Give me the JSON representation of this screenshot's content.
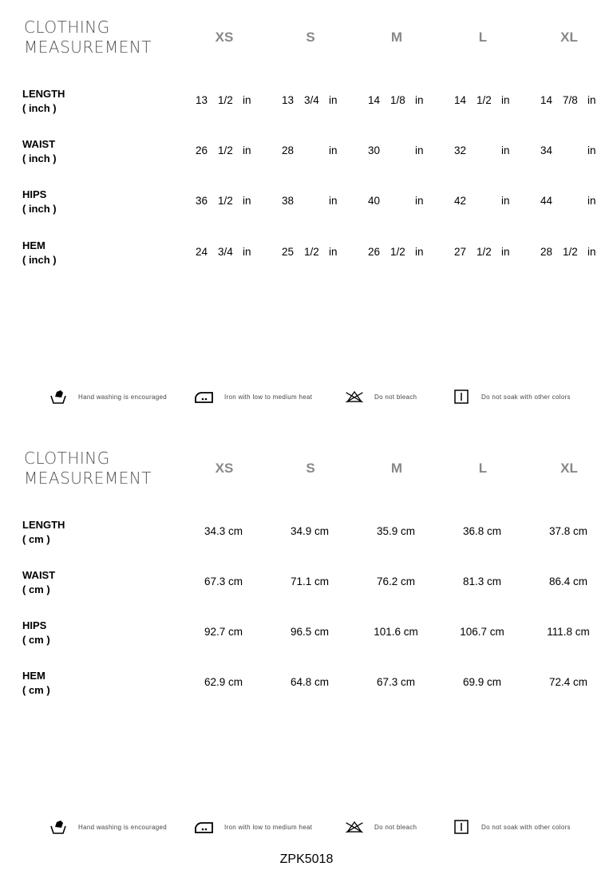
{
  "sizes": [
    "XS",
    "S",
    "M",
    "L",
    "XL"
  ],
  "inch_section": {
    "title_line1": "CLOTHING",
    "title_line2": "MEASUREMENT",
    "rows": [
      {
        "label": "LENGTH",
        "unit": "( inch )",
        "values": [
          [
            "13",
            "1/2",
            "in"
          ],
          [
            "13",
            "3/4",
            "in"
          ],
          [
            "14",
            "1/8",
            "in"
          ],
          [
            "14",
            "1/2",
            "in"
          ],
          [
            "14",
            "7/8",
            "in"
          ]
        ]
      },
      {
        "label": "WAIST",
        "unit": "( inch )",
        "values": [
          [
            "26",
            "1/2",
            "in"
          ],
          [
            "28",
            "",
            "in"
          ],
          [
            "30",
            "",
            "in"
          ],
          [
            "32",
            "",
            "in"
          ],
          [
            "34",
            "",
            "in"
          ]
        ]
      },
      {
        "label": "HIPS",
        "unit": "( inch )",
        "values": [
          [
            "36",
            "1/2",
            "in"
          ],
          [
            "38",
            "",
            "in"
          ],
          [
            "40",
            "",
            "in"
          ],
          [
            "42",
            "",
            "in"
          ],
          [
            "44",
            "",
            "in"
          ]
        ]
      },
      {
        "label": "HEM",
        "unit": "( inch )",
        "values": [
          [
            "24",
            "3/4",
            "in"
          ],
          [
            "25",
            "1/2",
            "in"
          ],
          [
            "26",
            "1/2",
            "in"
          ],
          [
            "27",
            "1/2",
            "in"
          ],
          [
            "28",
            "1/2",
            "in"
          ]
        ]
      }
    ]
  },
  "cm_section": {
    "title_line1": "CLOTHING",
    "title_line2": "MEASUREMENT",
    "rows": [
      {
        "label": "LENGTH",
        "unit": "( cm )",
        "values": [
          "34.3 cm",
          "34.9 cm",
          "35.9 cm",
          "36.8 cm",
          "37.8 cm"
        ]
      },
      {
        "label": "WAIST",
        "unit": "( cm )",
        "values": [
          "67.3 cm",
          "71.1 cm",
          "76.2 cm",
          "81.3 cm",
          "86.4 cm"
        ]
      },
      {
        "label": "HIPS",
        "unit": "( cm )",
        "values": [
          "92.7 cm",
          "96.5 cm",
          "101.6 cm",
          "106.7 cm",
          "111.8 cm"
        ]
      },
      {
        "label": "HEM",
        "unit": "( cm )",
        "values": [
          "62.9 cm",
          "64.8 cm",
          "67.3 cm",
          "69.9 cm",
          "72.4 cm"
        ]
      }
    ]
  },
  "care": [
    {
      "icon": "hand-wash-icon",
      "text": "Hand washing is encouraged"
    },
    {
      "icon": "iron-icon",
      "text": "Iron with low to medium heat"
    },
    {
      "icon": "no-bleach-icon",
      "text": "Do not bleach"
    },
    {
      "icon": "no-soak-icon",
      "text": "Do not soak with other colors"
    }
  ],
  "product_code": "ZPK5018"
}
